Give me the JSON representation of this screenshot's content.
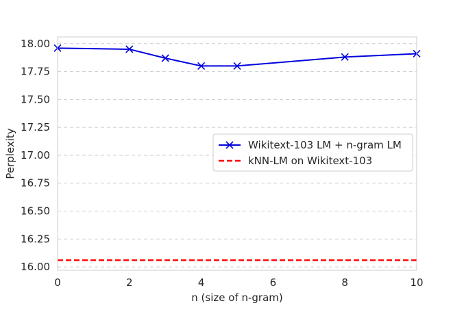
{
  "chart_data": {
    "type": "line",
    "title": "",
    "xlabel": "n (size of n-gram)",
    "ylabel": "Perplexity",
    "xlim": [
      0,
      10
    ],
    "ylim": [
      15.97,
      18.06
    ],
    "xticks": [
      0,
      2,
      4,
      6,
      8,
      10
    ],
    "xtick_labels": [
      "0",
      "2",
      "4",
      "6",
      "8",
      "10"
    ],
    "yticks": [
      16.0,
      16.25,
      16.5,
      16.75,
      17.0,
      17.25,
      17.5,
      17.75,
      18.0
    ],
    "ytick_labels": [
      "16.00",
      "16.25",
      "16.50",
      "16.75",
      "17.00",
      "17.25",
      "17.50",
      "17.75",
      "18.00"
    ],
    "grid": "horizontal dashed",
    "legend_position": "center-right",
    "series": [
      {
        "name": "Wikitext-103 LM + n-gram LM",
        "color": "#0000dd",
        "style": "solid",
        "marker": "x",
        "x": [
          0,
          2,
          3,
          4,
          5,
          8,
          10
        ],
        "y": [
          17.96,
          17.95,
          17.87,
          17.8,
          17.8,
          17.88,
          17.91
        ]
      },
      {
        "name": "kNN-LM on Wikitext-103",
        "color": "#ff0000",
        "style": "dashed",
        "marker": "none",
        "y": 16.06
      }
    ]
  }
}
